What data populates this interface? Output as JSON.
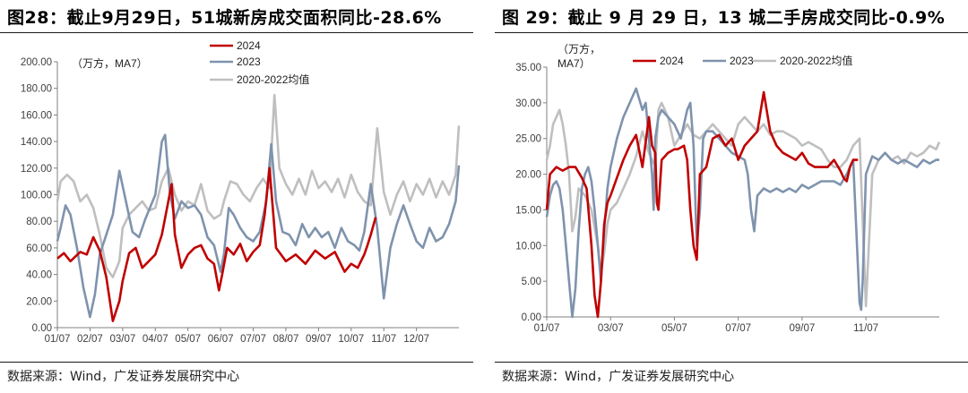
{
  "chart_data": [
    {
      "type": "line",
      "title": "图28：截止9月29日，51城新房成交面积同比-28.6%",
      "source": "数据来源：Wind，广发证券发展研究中心",
      "unit_label": "（万方，MA7）",
      "ylim": [
        0,
        200
      ],
      "yticks": [
        "0.00",
        "20.00",
        "40.00",
        "60.00",
        "80.00",
        "100.00",
        "120.00",
        "140.00",
        "160.00",
        "180.00",
        "200.00"
      ],
      "xticks": [
        "01/07",
        "02/07",
        "03/07",
        "04/07",
        "05/07",
        "06/07",
        "07/07",
        "08/07",
        "09/07",
        "10/07",
        "11/07",
        "12/07"
      ],
      "xlim": [
        0,
        12.3
      ],
      "series": [
        {
          "name": "2024",
          "color": "#c00000",
          "x": [
            0,
            0.2,
            0.4,
            0.7,
            0.9,
            1.1,
            1.3,
            1.5,
            1.7,
            1.9,
            2.0,
            2.2,
            2.4,
            2.6,
            2.8,
            3.0,
            3.2,
            3.4,
            3.5,
            3.6,
            3.8,
            4.0,
            4.2,
            4.4,
            4.6,
            4.8,
            4.95,
            5.05,
            5.2,
            5.4,
            5.6,
            5.8,
            6.0,
            6.2,
            6.35,
            6.5,
            6.7,
            7.0,
            7.3,
            7.6,
            7.9,
            8.2,
            8.5,
            8.8,
            9.0,
            9.2,
            9.4,
            9.5,
            9.6,
            9.75
          ],
          "y": [
            52,
            56,
            50,
            57,
            55,
            68,
            58,
            38,
            5,
            20,
            35,
            56,
            60,
            45,
            50,
            55,
            70,
            95,
            108,
            70,
            45,
            55,
            60,
            62,
            52,
            48,
            28,
            40,
            60,
            55,
            63,
            50,
            57,
            62,
            85,
            120,
            60,
            50,
            55,
            48,
            58,
            52,
            57,
            42,
            48,
            45,
            55,
            62,
            70,
            83
          ]
        },
        {
          "name": "2023",
          "color": "#7f93ad",
          "x": [
            0,
            0.1,
            0.25,
            0.4,
            0.6,
            0.8,
            1.0,
            1.15,
            1.3,
            1.5,
            1.7,
            1.9,
            2.1,
            2.3,
            2.5,
            2.7,
            3.0,
            3.2,
            3.3,
            3.45,
            3.6,
            3.8,
            4.0,
            4.2,
            4.4,
            4.6,
            4.8,
            5.0,
            5.1,
            5.25,
            5.4,
            5.6,
            5.8,
            6.0,
            6.2,
            6.4,
            6.55,
            6.7,
            6.9,
            7.1,
            7.3,
            7.5,
            7.7,
            7.9,
            8.1,
            8.3,
            8.5,
            8.7,
            8.9,
            9.1,
            9.25,
            9.4,
            9.6,
            9.8,
            10.0,
            10.2,
            10.4,
            10.6,
            10.8,
            11.0,
            11.2,
            11.4,
            11.6,
            11.8,
            12.0,
            12.2,
            12.3
          ],
          "y": [
            65,
            75,
            92,
            85,
            60,
            30,
            8,
            25,
            55,
            70,
            85,
            118,
            95,
            72,
            68,
            82,
            100,
            140,
            145,
            100,
            82,
            95,
            90,
            92,
            85,
            68,
            62,
            42,
            55,
            90,
            85,
            75,
            68,
            65,
            72,
            95,
            138,
            95,
            72,
            70,
            62,
            78,
            68,
            75,
            68,
            72,
            60,
            75,
            65,
            62,
            58,
            72,
            108,
            75,
            22,
            60,
            78,
            92,
            78,
            65,
            60,
            75,
            65,
            68,
            78,
            95,
            122
          ]
        },
        {
          "name": "2020-2022均值",
          "color": "#bfbfbf",
          "x": [
            0,
            0.1,
            0.3,
            0.5,
            0.7,
            0.9,
            1.1,
            1.3,
            1.5,
            1.7,
            1.9,
            2.0,
            2.2,
            2.4,
            2.6,
            2.8,
            3.0,
            3.2,
            3.4,
            3.6,
            3.8,
            4.0,
            4.2,
            4.4,
            4.6,
            4.8,
            5.0,
            5.1,
            5.3,
            5.5,
            5.7,
            5.9,
            6.1,
            6.3,
            6.5,
            6.65,
            6.8,
            7.0,
            7.2,
            7.4,
            7.6,
            7.8,
            8.0,
            8.2,
            8.4,
            8.6,
            8.8,
            9.0,
            9.2,
            9.4,
            9.6,
            9.8,
            10.0,
            10.2,
            10.4,
            10.6,
            10.8,
            11.0,
            11.2,
            11.4,
            11.6,
            11.8,
            12.0,
            12.2,
            12.3
          ],
          "y": [
            95,
            110,
            115,
            110,
            95,
            100,
            90,
            70,
            45,
            38,
            50,
            75,
            85,
            90,
            95,
            88,
            90,
            110,
            120,
            100,
            88,
            95,
            92,
            108,
            88,
            82,
            85,
            95,
            110,
            108,
            100,
            95,
            105,
            112,
            105,
            175,
            120,
            108,
            100,
            112,
            100,
            118,
            105,
            110,
            102,
            112,
            98,
            115,
            102,
            95,
            92,
            150,
            102,
            85,
            100,
            110,
            95,
            108,
            100,
            112,
            98,
            110,
            100,
            115,
            152
          ]
        }
      ]
    },
    {
      "type": "line",
      "title": "图 29：截止 9 月 29 日，13 城二手房成交同比-0.9%",
      "source": "数据来源：Wind，广发证券发展研究中心",
      "unit_label": "（万方，",
      "unit_label_2": "MA7）",
      "ylim": [
        0,
        35
      ],
      "yticks": [
        "0.00",
        "5.00",
        "10.00",
        "15.00",
        "20.00",
        "25.00",
        "30.00",
        "35.00"
      ],
      "xticks": [
        "01/07",
        "03/07",
        "05/07",
        "07/07",
        "09/07",
        "11/07"
      ],
      "xlim": [
        0,
        12.3
      ],
      "series": [
        {
          "name": "2024",
          "color": "#c00000",
          "x": [
            0,
            0.1,
            0.3,
            0.5,
            0.7,
            0.9,
            1.1,
            1.25,
            1.4,
            1.5,
            1.6,
            1.7,
            1.8,
            1.9,
            2.0,
            2.2,
            2.4,
            2.6,
            2.8,
            3.0,
            3.2,
            3.3,
            3.4,
            3.45,
            3.5,
            3.6,
            3.8,
            4.0,
            4.1,
            4.3,
            4.4,
            4.5,
            4.6,
            4.7,
            4.8,
            5.0,
            5.2,
            5.4,
            5.6,
            5.8,
            6.0,
            6.2,
            6.4,
            6.6,
            6.8,
            7.0,
            7.2,
            7.4,
            7.6,
            7.8,
            8.0,
            8.2,
            8.4,
            8.6,
            8.8,
            9.0,
            9.2,
            9.3,
            9.4,
            9.5,
            9.6,
            9.75
          ],
          "y": [
            15,
            20,
            21,
            20.5,
            21,
            21,
            19.5,
            18,
            10,
            3,
            0,
            5,
            13,
            16,
            17,
            19.5,
            22,
            24,
            25.5,
            21,
            28,
            24,
            23,
            16,
            15,
            22,
            23,
            23.5,
            23.5,
            24,
            22,
            15,
            10,
            8,
            20,
            21,
            25,
            25.5,
            24,
            25,
            22,
            24,
            25,
            26,
            31.5,
            26,
            24,
            23,
            22.5,
            22,
            23,
            21.5,
            21,
            21,
            21,
            22,
            20.5,
            19.5,
            19,
            21,
            22,
            22
          ]
        },
        {
          "name": "2023",
          "color": "#7f93ad",
          "x": [
            0,
            0.1,
            0.2,
            0.3,
            0.4,
            0.5,
            0.6,
            0.7,
            0.8,
            0.9,
            1.0,
            1.1,
            1.2,
            1.3,
            1.4,
            1.5,
            1.6,
            1.7,
            1.8,
            1.9,
            2.0,
            2.2,
            2.4,
            2.6,
            2.8,
            3.0,
            3.1,
            3.2,
            3.3,
            3.35,
            3.4,
            3.5,
            3.6,
            3.8,
            4.0,
            4.2,
            4.4,
            4.5,
            4.6,
            4.7,
            4.8,
            4.9,
            5.0,
            5.2,
            5.4,
            5.6,
            5.8,
            6.0,
            6.2,
            6.3,
            6.4,
            6.5,
            6.6,
            6.8,
            7.0,
            7.2,
            7.4,
            7.6,
            7.8,
            8.0,
            8.2,
            8.4,
            8.6,
            8.8,
            9.0,
            9.2,
            9.4,
            9.6,
            9.8,
            9.85,
            9.9,
            10.0,
            10.2,
            10.4,
            10.6,
            10.8,
            11.0,
            11.2,
            11.4,
            11.6,
            11.8,
            12.0,
            12.2,
            12.3
          ],
          "y": [
            14,
            17,
            18.5,
            19,
            18,
            15,
            10,
            5,
            0,
            4,
            12,
            18,
            20,
            21,
            19,
            15,
            10,
            5,
            12,
            18,
            21,
            25,
            28,
            30,
            32,
            29,
            30,
            25,
            20,
            15,
            25,
            28,
            29,
            28,
            27,
            25,
            29,
            30,
            24,
            10,
            15,
            25,
            26,
            26,
            25,
            24,
            23,
            22.5,
            22,
            20,
            15,
            12,
            17,
            18,
            17.5,
            18,
            17.5,
            18,
            17.5,
            18.5,
            18,
            18.5,
            19,
            19,
            19,
            18.5,
            20,
            22,
            2,
            1,
            5,
            20,
            22.5,
            22,
            23,
            22,
            21.5,
            22,
            21.5,
            21,
            22,
            21.5,
            22,
            22
          ]
        },
        {
          "name": "2020-2022均值",
          "color": "#bfbfbf",
          "x": [
            0,
            0.1,
            0.2,
            0.3,
            0.4,
            0.5,
            0.6,
            0.7,
            0.8,
            0.9,
            1.0,
            1.2,
            1.4,
            1.6,
            1.7,
            1.8,
            1.9,
            2.0,
            2.2,
            2.4,
            2.6,
            2.8,
            3.0,
            3.2,
            3.4,
            3.5,
            3.6,
            3.8,
            4.0,
            4.2,
            4.4,
            4.6,
            4.8,
            5.0,
            5.2,
            5.4,
            5.6,
            5.8,
            6.0,
            6.2,
            6.4,
            6.6,
            6.8,
            7.0,
            7.2,
            7.4,
            7.6,
            7.8,
            8.0,
            8.2,
            8.4,
            8.6,
            8.8,
            9.0,
            9.2,
            9.4,
            9.6,
            9.8,
            10.0,
            10.2,
            10.4,
            10.6,
            10.8,
            11.0,
            11.2,
            11.4,
            11.6,
            11.8,
            12.0,
            12.2,
            12.3
          ],
          "y": [
            22,
            24,
            27,
            28,
            29,
            27,
            24,
            20,
            12,
            14,
            18,
            17,
            15,
            10,
            6,
            9,
            13,
            15,
            16,
            18,
            20,
            22.5,
            26,
            23,
            21,
            29,
            30,
            28,
            24,
            25.5,
            27,
            25.5,
            25,
            26,
            27,
            26,
            25,
            24,
            27,
            28,
            27,
            26,
            27,
            25.5,
            26,
            26,
            25.5,
            25,
            24,
            24.5,
            24,
            23.5,
            22,
            21,
            21,
            22,
            24,
            25,
            1.5,
            20,
            22,
            23,
            22,
            22.5,
            21.5,
            23,
            22.5,
            23,
            24,
            23.5,
            24.5
          ]
        }
      ]
    }
  ]
}
